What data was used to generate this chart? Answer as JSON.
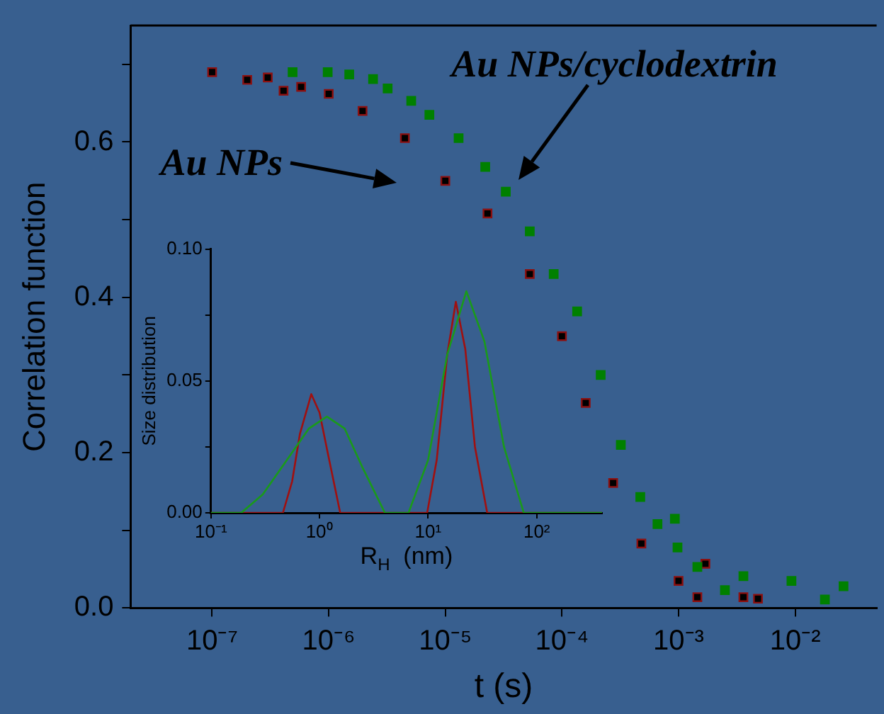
{
  "chart_data": [
    {
      "type": "scatter",
      "xlabel": "t (s)",
      "ylabel": "Correlation function",
      "log": "x",
      "xlim": [
        2e-08,
        0.05
      ],
      "ylim": [
        0,
        0.75
      ],
      "xticks": [
        {
          "value": 1e-07,
          "label": "10⁻⁷"
        },
        {
          "value": 1e-06,
          "label": "10⁻⁶"
        },
        {
          "value": 1e-05,
          "label": "10⁻⁵"
        },
        {
          "value": 0.0001,
          "label": "10⁻⁴"
        },
        {
          "value": 0.001,
          "label": "10⁻³"
        },
        {
          "value": 0.01,
          "label": "10⁻²"
        }
      ],
      "yticks": [
        {
          "value": 0,
          "label": "0.0"
        },
        {
          "value": 0.1,
          "label": null
        },
        {
          "value": 0.2,
          "label": "0.2"
        },
        {
          "value": 0.3,
          "label": null
        },
        {
          "value": 0.4,
          "label": "0.4"
        },
        {
          "value": 0.5,
          "label": null
        },
        {
          "value": 0.6,
          "label": "0.6"
        },
        {
          "value": 0.7,
          "label": null
        }
      ],
      "grid": false,
      "legend": "top left",
      "marker": "square",
      "series": [
        {
          "name": "Au NPs",
          "color": "#000000",
          "x": [
            1e-07,
            2e-07,
            3e-07,
            4.1e-07,
            5.8e-07,
            1e-06,
            1.95e-06,
            4.5e-06,
            1e-05,
            2.3e-05,
            5.3e-05,
            0.0001,
            0.00016,
            0.000275,
            0.00048,
            0.001,
            0.00145,
            0.0017,
            0.0036,
            0.0048
          ],
          "values": [
            0.69,
            0.68,
            0.683,
            0.666,
            0.671,
            0.662,
            0.64,
            0.605,
            0.55,
            0.508,
            0.43,
            0.35,
            0.264,
            0.161,
            0.083,
            0.035,
            0.014,
            0.057,
            0.014,
            0.012
          ]
        },
        {
          "name": "Au NPs/cyclodextrin",
          "color": "#008000",
          "x": [
            4.9e-07,
            9.8e-07,
            1.5e-06,
            2.4e-06,
            3.2e-06,
            5.1e-06,
            7.3e-06,
            1.3e-05,
            2.2e-05,
            3.3e-05,
            5.3e-05,
            8.5e-05,
            0.000135,
            0.000215,
            0.00032,
            0.00047,
            0.00066,
            0.00093,
            0.00098,
            0.00145,
            0.0025,
            0.0036,
            0.0093,
            0.018,
            0.026
          ],
          "values": [
            0.69,
            0.69,
            0.687,
            0.681,
            0.669,
            0.653,
            0.635,
            0.605,
            0.568,
            0.536,
            0.485,
            0.43,
            0.382,
            0.3,
            0.21,
            0.143,
            0.108,
            0.115,
            0.078,
            0.053,
            0.023,
            0.041,
            0.035,
            0.011,
            0.028
          ]
        }
      ]
    },
    {
      "type": "line",
      "xlabel": "R$_{H}$  (nm)",
      "ylabel": "Size distribution",
      "log": "x",
      "xlim": [
        0.1,
        400
      ],
      "ylim": [
        0,
        0.1
      ],
      "xticks": [
        {
          "value": 0.1,
          "label": "10⁻¹"
        },
        {
          "value": 1,
          "label": "10⁰"
        },
        {
          "value": 10,
          "label": "10¹"
        },
        {
          "value": 100,
          "label": "10²"
        }
      ],
      "yticks": [
        {
          "value": 0,
          "label": "0.00"
        },
        {
          "value": 0.025,
          "label": null
        },
        {
          "value": 0.05,
          "label": "0.05"
        },
        {
          "value": 0.075,
          "label": null
        },
        {
          "value": 0.1,
          "label": "0.10"
        }
      ],
      "grid": false,
      "legend": false,
      "marker": "none",
      "series": [
        {
          "color": "#a01010",
          "x": [
            0.1,
            0.46,
            0.56,
            0.66,
            0.84,
            1.0,
            1.2,
            1.55,
            9.8,
            12,
            15,
            18,
            22,
            27,
            35,
            400
          ],
          "values": [
            0,
            0,
            0.012,
            0.03,
            0.045,
            0.038,
            0.022,
            0,
            0,
            0.02,
            0.06,
            0.08,
            0.062,
            0.025,
            0,
            0
          ]
        },
        {
          "color": "#1a9a1a",
          "x": [
            0.1,
            0.19,
            0.3,
            0.5,
            0.8,
            1.17,
            1.7,
            2.5,
            4.0,
            6.6,
            10,
            15,
            22.5,
            33,
            50,
            76,
            400
          ],
          "values": [
            0,
            0,
            0.007,
            0.02,
            0.032,
            0.0365,
            0.032,
            0.017,
            0,
            0,
            0.02,
            0.06,
            0.084,
            0.065,
            0.025,
            0,
            0
          ]
        }
      ]
    }
  ]
}
